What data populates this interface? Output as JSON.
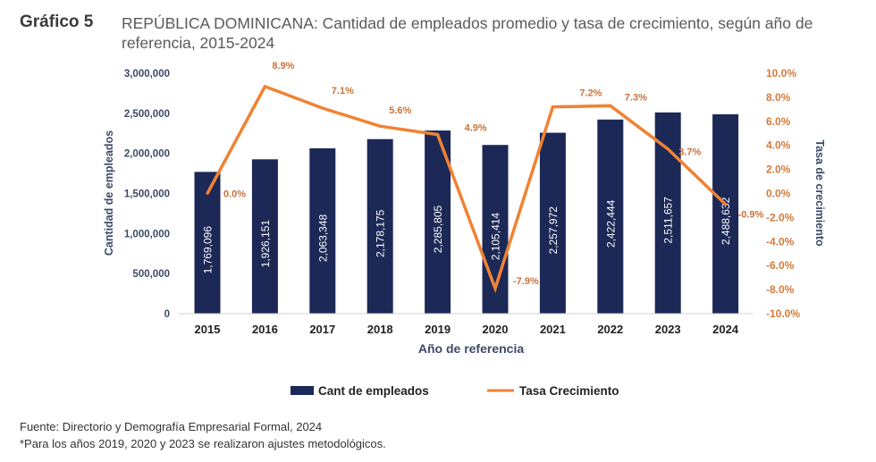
{
  "header": {
    "label": "Gráfico 5",
    "title": "REPÚBLICA DOMINICANA: Cantidad de empleados promedio y tasa de crecimiento, según año de referencia, 2015-2024"
  },
  "chart_data": {
    "type": "bar+line",
    "categories": [
      "2015",
      "2016",
      "2017",
      "2018",
      "2019",
      "2020",
      "2021",
      "2022",
      "2023",
      "2024"
    ],
    "series": [
      {
        "name": "Cant de empleados",
        "type": "bar",
        "axis": "left",
        "values": [
          1769096,
          1926151,
          2063348,
          2178175,
          2285805,
          2105414,
          2257972,
          2422444,
          2511657,
          2488632
        ],
        "labels": [
          "1,769,096",
          "1,926,151",
          "2,063,348",
          "2,178,175",
          "2,285,805",
          "2,105,414",
          "2,257,972",
          "2,422,444",
          "2,511,657",
          "2,488,632"
        ],
        "color": "#1c2856"
      },
      {
        "name": "Tasa Crecimiento",
        "type": "line",
        "axis": "right",
        "values": [
          0.0,
          8.9,
          7.1,
          5.6,
          4.9,
          -7.9,
          7.2,
          7.3,
          3.7,
          -0.9
        ],
        "labels": [
          "0.0%",
          "8.9%",
          "7.1%",
          "5.6%",
          "4.9%",
          "-7.9%",
          "7.2%",
          "7.3%",
          "3.7%",
          "-0.9%"
        ],
        "color": "#f08232"
      }
    ],
    "xlabel": "Año de referencia",
    "ylabel": "Cantidad de empleados",
    "y2label": "Tasa de crecimiento",
    "ylim": [
      0,
      3000000
    ],
    "y2lim": [
      -10,
      10
    ],
    "yticks": [
      "0",
      "500,000",
      "1,000,000",
      "1,500,000",
      "2,000,000",
      "2,500,000",
      "3,000,000"
    ],
    "y2ticks": [
      "-10.0%",
      "-8.0%",
      "-6.0%",
      "-4.0%",
      "-2.0%",
      "0.0%",
      "2.0%",
      "4.0%",
      "6.0%",
      "8.0%",
      "10.0%"
    ],
    "grid": false,
    "legend": "bottom"
  },
  "footer": {
    "source": "Fuente: Directorio y Demografía Empresarial Formal, 2024",
    "note": "*Para los años 2019, 2020 y 2023 se realizaron ajustes metodológicos."
  }
}
